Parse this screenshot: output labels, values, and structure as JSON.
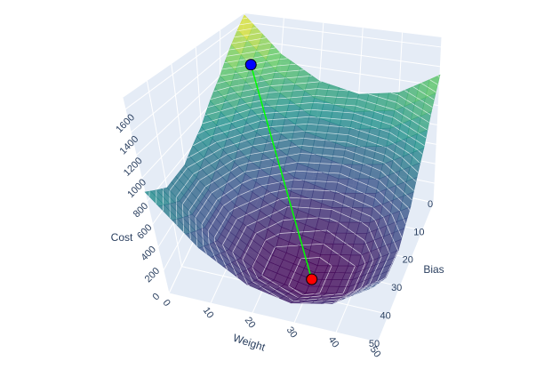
{
  "chart_data": {
    "type": "surface",
    "x_title": "Weight",
    "y_title": "Bias",
    "z_title": "Cost",
    "x": [
      0,
      10,
      20,
      30,
      40,
      50
    ],
    "y": [
      0,
      10,
      20,
      30,
      40,
      50
    ],
    "z": [
      [
        1681,
        1287,
        1054,
        980,
        1067,
        1313
      ],
      [
        1201,
        807,
        574,
        500,
        587,
        833
      ],
      [
        881,
        487,
        254,
        180,
        267,
        513
      ],
      [
        721,
        327,
        94,
        20,
        107,
        353
      ],
      [
        721,
        327,
        94,
        20,
        107,
        353
      ],
      [
        881,
        487,
        254,
        180,
        267,
        513
      ]
    ],
    "xlim": [
      0,
      50
    ],
    "ylim": [
      0,
      50
    ],
    "zlim": [
      0,
      1700
    ],
    "xticks": [
      0,
      10,
      20,
      30,
      40,
      50
    ],
    "yticks": [
      0,
      10,
      20,
      30,
      40,
      50
    ],
    "zticks": [
      0,
      200,
      400,
      600,
      800,
      1000,
      1200,
      1400,
      1600
    ],
    "colorscale": [
      "#440154",
      "#3b528b",
      "#21918c",
      "#5ec962",
      "#fde725"
    ],
    "opacity": 0.8,
    "contours": {
      "color": "#ffffff",
      "step": 50
    },
    "path": {
      "x": [
        5,
        30
      ],
      "y": [
        5,
        35
      ],
      "z": [
        1250,
        20
      ],
      "color": "#00ff00",
      "marker_colors": [
        "#0000ff",
        "#ff0000"
      ]
    }
  }
}
